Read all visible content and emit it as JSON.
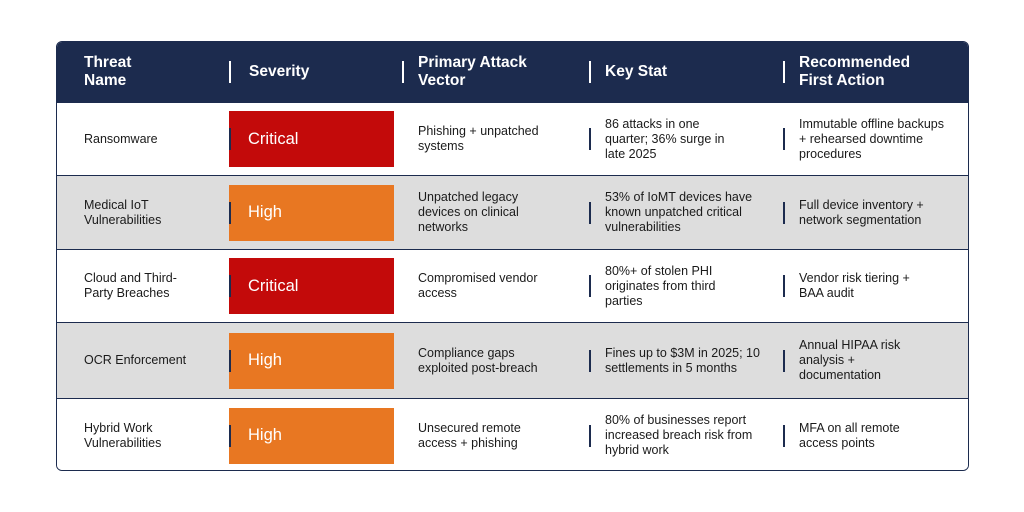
{
  "header": {
    "threat_name": "Threat Name",
    "severity": "Severity",
    "primary_attack_vector": "Primary Attack Vector",
    "key_stat": "Key Stat",
    "recommended_first_action": "Recommended First Action"
  },
  "colors": {
    "header_bg": "#1c2b4e",
    "critical": "#c30a0a",
    "high": "#e87722",
    "alt_row": "#dddddd"
  },
  "rows": [
    {
      "threat": "Ransomware",
      "severity": "Critical",
      "vector": "Phishing + unpatched systems",
      "stat": "86 attacks in one quarter; 36% surge in late 2025",
      "action": "Immutable offline backups + rehearsed downtime procedures"
    },
    {
      "threat": "Medical IoT Vulnerabilities",
      "severity": "High",
      "vector": "Unpatched legacy devices on clinical networks",
      "stat": "53% of IoMT devices have known unpatched critical vulnerabilities",
      "action": "Full device inventory + network segmentation"
    },
    {
      "threat": "Cloud and Third-Party Breaches",
      "severity": "Critical",
      "vector": "Compromised vendor access",
      "stat": "80%+ of stolen PHI originates from third parties",
      "action": "Vendor risk tiering + BAA audit"
    },
    {
      "threat": "OCR Enforcement",
      "severity": "High",
      "vector": "Compliance gaps exploited post-breach",
      "stat": "Fines up to $3M in 2025; 10 settlements in 5 months",
      "action": "Annual HIPAA risk analysis + documentation"
    },
    {
      "threat": "Hybrid Work Vulnerabilities",
      "severity": "High",
      "vector": "Unsecured remote access + phishing",
      "stat": "80% of businesses report increased breach risk from hybrid work",
      "action": "MFA on all remote access points"
    }
  ]
}
